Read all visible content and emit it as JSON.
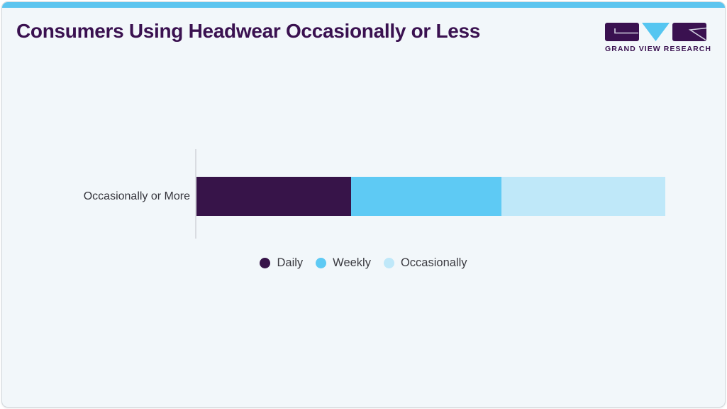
{
  "card": {
    "background": "#f2f7fa",
    "border_color": "#d3d9de",
    "accent_color": "#5dc5ef"
  },
  "header": {
    "title": "Consumers Using Headwear Occasionally or Less",
    "title_color": "#3a1150"
  },
  "logo": {
    "wordmark": "GRAND VIEW RESEARCH",
    "wordmark_color": "#3a1150",
    "block_color": "#3a1150",
    "v_color": "#56c6f1",
    "glyph_line_color": "#d0cfdf"
  },
  "chart_data": {
    "type": "bar",
    "orientation": "horizontal",
    "stacked": true,
    "title": "Consumers Using Headwear Occasionally or Less",
    "categories": [
      "Occasionally or More"
    ],
    "series": [
      {
        "name": "Daily",
        "values": [
          33
        ],
        "color": "#371449"
      },
      {
        "name": "Weekly",
        "values": [
          32
        ],
        "color": "#5ecaf4"
      },
      {
        "name": "Occasionally",
        "values": [
          35
        ],
        "color": "#bfe8f9"
      }
    ],
    "xlim": [
      0,
      100
    ],
    "xlabel": "",
    "ylabel": "",
    "grid": false,
    "value_labels": false,
    "legend_position": "bottom",
    "label_color": "#35353c",
    "axis_line_color": "#d9dce1"
  }
}
